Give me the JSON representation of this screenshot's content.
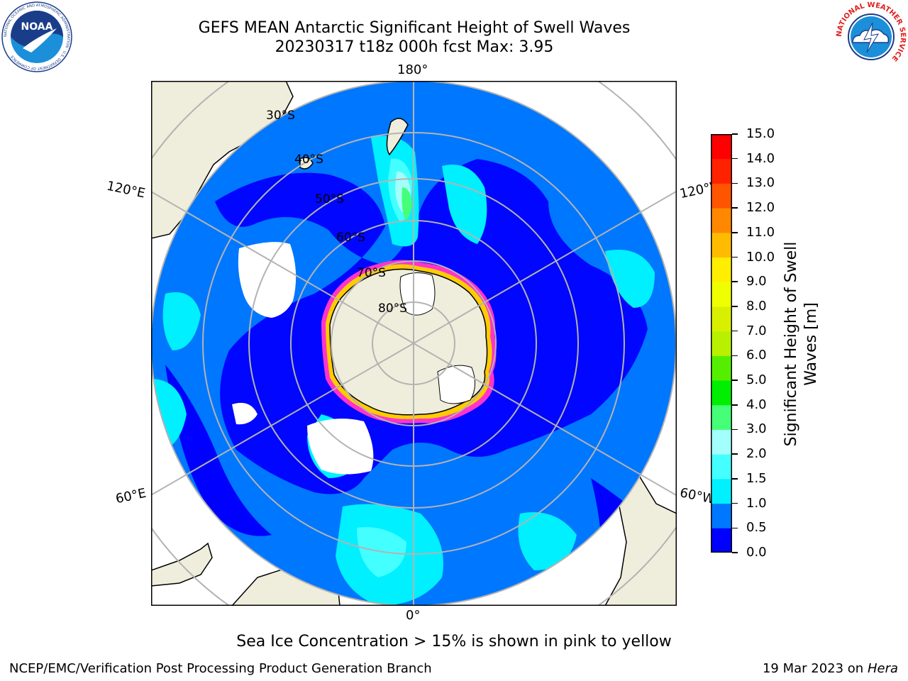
{
  "title": {
    "line1": "GEFS MEAN Antarctic Significant Height of Swell Waves",
    "line2": "20230317 t18z 000h fcst   Max: 3.95"
  },
  "map": {
    "projection": "south-polar-stereographic",
    "longitude_labels": [
      "180°",
      "120°E",
      "120°W",
      "60°E",
      "60°W",
      "0°"
    ],
    "latitude_labels": [
      "30°S",
      "40°S",
      "50°S",
      "60°S",
      "70°S",
      "80°S"
    ],
    "colors": {
      "land": "#efeedc",
      "coast": "#000000",
      "grid": "#b3b3b3",
      "sea_ice_no_data": "#ffffff",
      "ice_edge": [
        "#ff33cc",
        "#ffcc00"
      ]
    }
  },
  "colorbar": {
    "label_line1": "Significant Height of Swell",
    "label_line2": "Waves [m]",
    "ticks": [
      "0.0",
      "0.5",
      "1.0",
      "1.5",
      "2.0",
      "3.0",
      "4.0",
      "5.0",
      "6.0",
      "7.0",
      "8.0",
      "9.0",
      "10.0",
      "11.0",
      "12.0",
      "13.0",
      "14.0",
      "15.0"
    ],
    "levels": [
      0.0,
      0.5,
      1.0,
      1.5,
      2.0,
      3.0,
      4.0,
      5.0,
      6.0,
      7.0,
      8.0,
      9.0,
      10.0,
      11.0,
      12.0,
      13.0,
      14.0,
      15.0
    ],
    "colors": [
      "#0000ff",
      "#0077ff",
      "#00f0ff",
      "#44ffff",
      "#a3fffb",
      "#44ff77",
      "#00ee00",
      "#55ee00",
      "#b8f000",
      "#d8f000",
      "#f0ff00",
      "#ffee00",
      "#ffbb00",
      "#ff8800",
      "#ff5500",
      "#ff2200",
      "#ff0000"
    ]
  },
  "annotations": {
    "sea_ice_note": "Sea Ice Concentration > 15% is shown in pink to yellow",
    "credit": "NCEP/EMC/Verification Post Processing Product Generation Branch",
    "date": "19 Mar 2023 on",
    "host": "Hera"
  },
  "logos": {
    "noaa_text": "NOAA",
    "noaa_ring": "NATIONAL OCEANIC AND ATMOSPHERIC ADMINISTRATION · U.S. DEPARTMENT OF COMMERCE",
    "nws_ring": "NATIONAL WEATHER SERVICE"
  }
}
